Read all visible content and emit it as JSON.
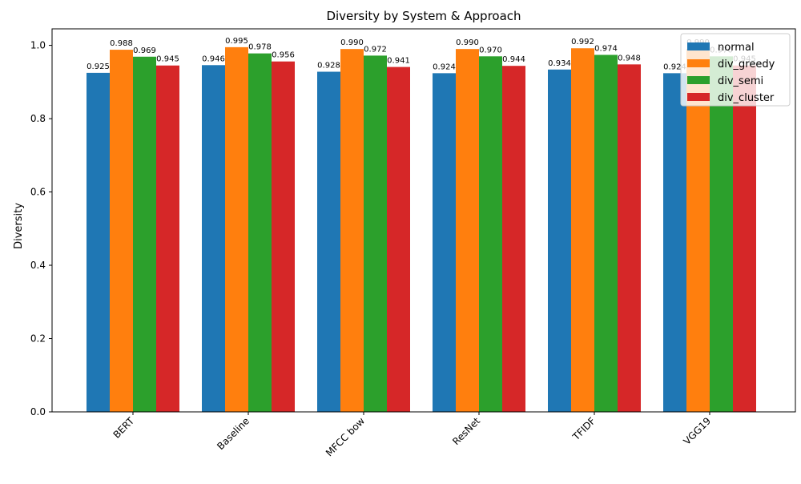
{
  "chart_data": {
    "type": "bar",
    "title": "Diversity by System & Approach",
    "xlabel": "",
    "ylabel": "Diversity",
    "ylim": [
      0,
      1.045
    ],
    "yticks": [
      "0.0",
      "0.2",
      "0.4",
      "0.6",
      "0.8",
      "1.0"
    ],
    "ytick_values": [
      0.0,
      0.2,
      0.4,
      0.6,
      0.8,
      1.0
    ],
    "categories": [
      "BERT",
      "Baseline",
      "MFCC bow",
      "ResNet",
      "TFIDF",
      "VGG19"
    ],
    "series": [
      {
        "name": "normal",
        "color": "#1f77b4",
        "values": [
          0.925,
          0.946,
          0.928,
          0.924,
          0.934,
          0.924
        ],
        "labels": [
          "0.925",
          "0.946",
          "0.928",
          "0.924",
          "0.934",
          "0.924"
        ]
      },
      {
        "name": "div_greedy",
        "color": "#ff7f0e",
        "values": [
          0.988,
          0.995,
          0.99,
          0.99,
          0.992,
          0.99
        ],
        "labels": [
          "0.988",
          "0.995",
          "0.990",
          "0.990",
          "0.992",
          "0.990"
        ]
      },
      {
        "name": "div_semi",
        "color": "#2ca02c",
        "values": [
          0.969,
          0.978,
          0.972,
          0.97,
          0.974,
          0.97
        ],
        "labels": [
          "0.969",
          "0.978",
          "0.972",
          "0.970",
          "0.974",
          "0.970"
        ]
      },
      {
        "name": "div_cluster",
        "color": "#d62728",
        "values": [
          0.945,
          0.956,
          0.941,
          0.944,
          0.948,
          0.945
        ],
        "labels": [
          "0.945",
          "0.956",
          "0.941",
          "0.944",
          "0.948",
          "0.945"
        ]
      }
    ],
    "legend_position": "top-right",
    "grid": false
  }
}
